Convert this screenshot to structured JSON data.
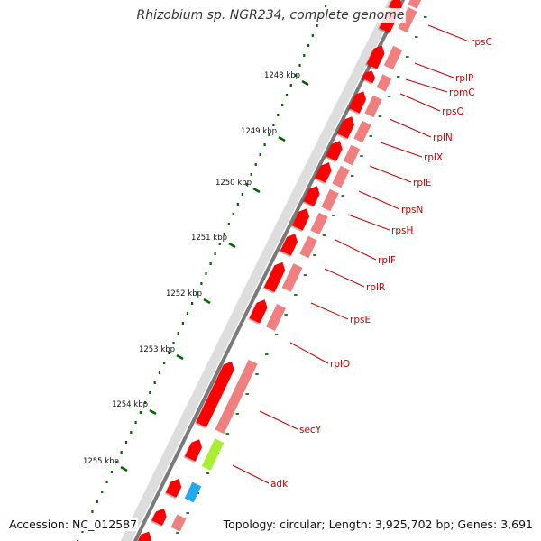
{
  "title": "Rhizobium sp. NGR234, complete genome",
  "footer": {
    "accession": "Accession: NC_012587",
    "summary": "Topology: circular; Length: 3,925,702 bp; Genes: 3,691"
  },
  "ticks": [
    {
      "label": "1248 kbp",
      "kbp": 1248
    },
    {
      "label": "1249 kbp",
      "kbp": 1249
    },
    {
      "label": "1250 kbp",
      "kbp": 1250
    },
    {
      "label": "1251 kbp",
      "kbp": 1251
    },
    {
      "label": "1252 kbp",
      "kbp": 1252
    },
    {
      "label": "1253 kbp",
      "kbp": 1253
    },
    {
      "label": "1254 kbp",
      "kbp": 1254
    },
    {
      "label": "1255 kbp",
      "kbp": 1255
    }
  ],
  "genes": [
    {
      "name": "rpsC"
    },
    {
      "name": "rplP"
    },
    {
      "name": "rpmC"
    },
    {
      "name": "rpsQ"
    },
    {
      "name": "rplN"
    },
    {
      "name": "rplX"
    },
    {
      "name": "rplE"
    },
    {
      "name": "rpsN"
    },
    {
      "name": "rpsH"
    },
    {
      "name": "rplF"
    },
    {
      "name": "rplR"
    },
    {
      "name": "rpsE"
    },
    {
      "name": "rplO"
    },
    {
      "name": "secY"
    },
    {
      "name": "adk"
    }
  ],
  "colors": {
    "cds": "#ff0000",
    "cds_light": "#f08080",
    "secY_cog": "#aaee33",
    "adk_cog": "#22aaee",
    "label": "#cc0000",
    "tick": "#006600",
    "backbone": "#777777"
  }
}
